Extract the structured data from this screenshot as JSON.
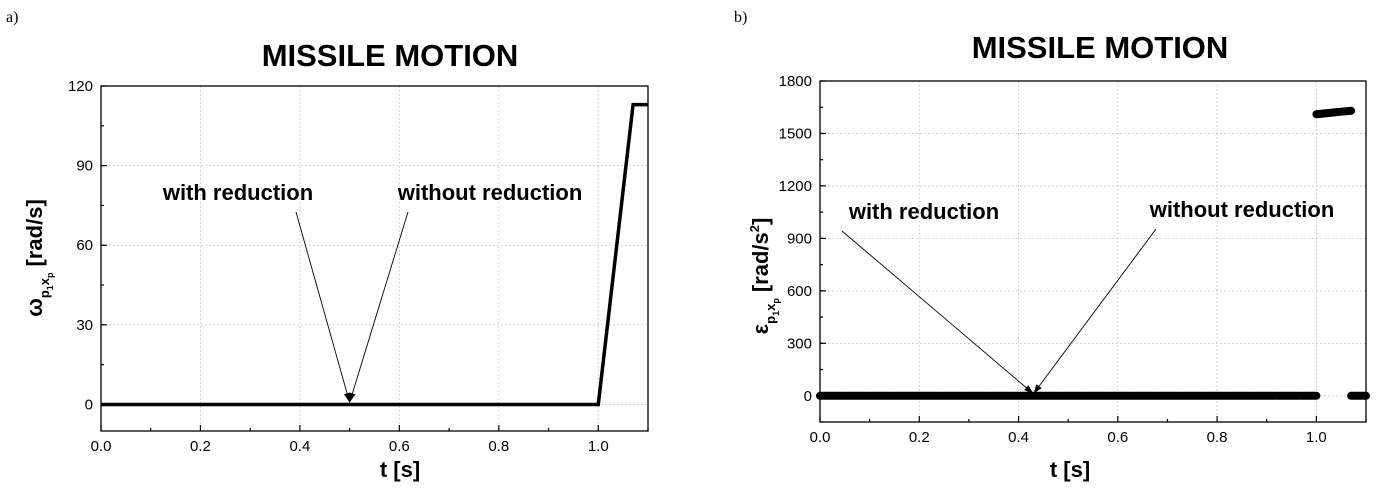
{
  "chart_data": [
    {
      "panel": "a)",
      "type": "line",
      "title": "MISSILE MOTION",
      "xlabel": "t [s]",
      "ylabel": {
        "symbol": "ω",
        "sub": "p",
        "subsub": "1",
        "sub2": "x",
        "subsub2": "p",
        "unit": "[rad/s]"
      },
      "xlim": [
        0.0,
        1.1
      ],
      "ylim": [
        -10,
        120
      ],
      "xticks": [
        "0.0",
        "0.2",
        "0.4",
        "0.6",
        "0.8",
        "1.0"
      ],
      "yticks": [
        "0",
        "30",
        "60",
        "90",
        "120"
      ],
      "grid": true,
      "series": [
        {
          "x": [
            0.0,
            1.0,
            1.07,
            1.1
          ],
          "y": [
            0,
            0,
            113,
            113
          ]
        }
      ],
      "annotations": [
        {
          "text": "with reduction",
          "target": [
            0.5,
            0
          ]
        },
        {
          "text": "without reduction",
          "target": [
            0.5,
            0
          ]
        }
      ]
    },
    {
      "panel": "b)",
      "type": "line",
      "title": "MISSILE MOTION",
      "xlabel": "t [s]",
      "ylabel": {
        "symbol": "ε",
        "sub": "p",
        "subsub": "1",
        "sub2": "x",
        "subsub2": "p",
        "unit": "[rad/s",
        "unit_sup": "2",
        "unit_end": "]"
      },
      "xlim": [
        0.0,
        1.1
      ],
      "ylim": [
        -150,
        1800
      ],
      "xticks": [
        "0.0",
        "0.2",
        "0.4",
        "0.6",
        "0.8",
        "1.0"
      ],
      "yticks": [
        "0",
        "300",
        "600",
        "900",
        "1200",
        "1500",
        "1800"
      ],
      "grid": true,
      "series": [
        {
          "segments": [
            {
              "x": [
                0.0,
                1.0
              ],
              "y": [
                0,
                0
              ]
            },
            {
              "x": [
                1.0,
                1.07
              ],
              "y": [
                1610,
                1630
              ]
            },
            {
              "x": [
                1.07,
                1.1
              ],
              "y": [
                0,
                0
              ]
            }
          ]
        }
      ],
      "annotations": [
        {
          "text": "with reduction",
          "target": [
            0.43,
            0
          ]
        },
        {
          "text": "without reduction",
          "target": [
            0.43,
            0
          ]
        }
      ]
    }
  ]
}
